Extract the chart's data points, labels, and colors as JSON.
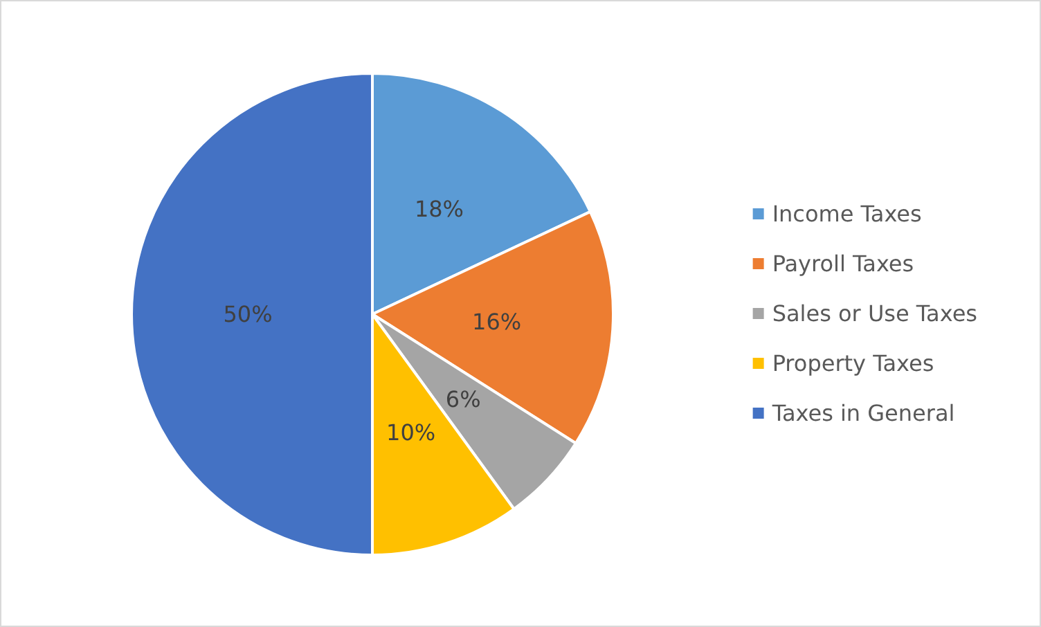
{
  "chart_data": {
    "type": "pie",
    "categories": [
      "Income Taxes",
      "Payroll Taxes",
      "Sales or Use Taxes",
      "Property Taxes",
      "Taxes in General"
    ],
    "values": [
      18,
      16,
      6,
      10,
      50
    ],
    "value_labels": [
      "18%",
      "16%",
      "6%",
      "10%",
      "50%"
    ],
    "colors": [
      "#5b9bd5",
      "#ed7d31",
      "#a5a5a5",
      "#ffc000",
      "#4472c4"
    ],
    "legend": "right"
  }
}
